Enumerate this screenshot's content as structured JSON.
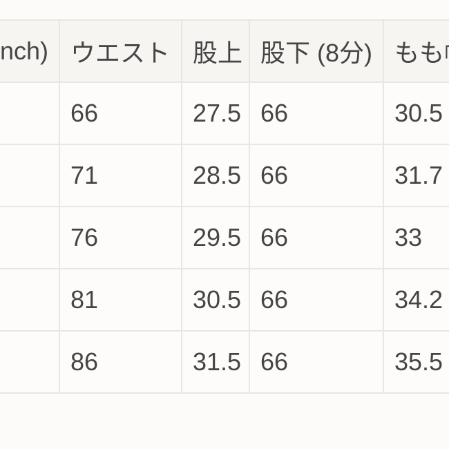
{
  "colors": {
    "page_bg": "#fcfbf9",
    "header_bg": "#f6f5f2",
    "cell_bg": "#fdfcfa",
    "border": "#e9e6e2",
    "text": "#454545"
  },
  "size_chart": {
    "headers": {
      "size_inch_fragment": "nch)",
      "waist": "ウエスト",
      "rise": "股上",
      "inseam": "股下 (8分)",
      "thigh": "もも幅"
    },
    "rows": [
      {
        "size": "",
        "waist": "66",
        "rise": "27.5",
        "inseam": "66",
        "thigh": "30.5"
      },
      {
        "size": "",
        "waist": "71",
        "rise": "28.5",
        "inseam": "66",
        "thigh": "31.7"
      },
      {
        "size": "",
        "waist": "76",
        "rise": "29.5",
        "inseam": "66",
        "thigh": "33"
      },
      {
        "size": "",
        "waist": "81",
        "rise": "30.5",
        "inseam": "66",
        "thigh": "34.2"
      },
      {
        "size": "",
        "waist": "86",
        "rise": "31.5",
        "inseam": "66",
        "thigh": "35.5"
      }
    ]
  }
}
